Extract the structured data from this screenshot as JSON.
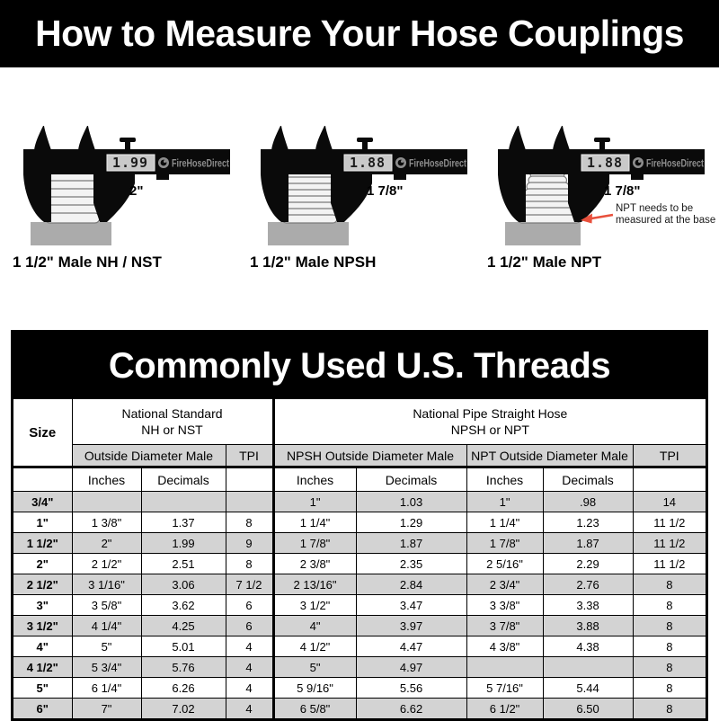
{
  "header": {
    "title": "How to Measure Your Hose Couplings"
  },
  "diagrams": {
    "items": [
      {
        "display": "1.99",
        "brand": "FireHoseDirect",
        "measure_label": "2\"",
        "caption": "1 1/2\" Male NH / NST"
      },
      {
        "display": "1.88",
        "brand": "FireHoseDirect",
        "measure_label": "1 7/8\"",
        "caption": "1 1/2\" Male NPSH"
      },
      {
        "display": "1.88",
        "brand": "FireHoseDirect",
        "measure_label": "1 7/8\"",
        "caption": "1 1/2\" Male NPT",
        "annotation_line1": "NPT needs to be",
        "annotation_line2": "measured at the base"
      }
    ]
  },
  "table": {
    "title": "Commonly Used U.S. Threads",
    "header": {
      "size": "Size",
      "group1": {
        "line1": "National Standard",
        "line2": "NH or NST"
      },
      "group2": {
        "line1": "National Pipe Straight Hose",
        "line2": "NPSH or NPT"
      },
      "sub_nh": "Outside Diameter Male",
      "sub_npsh": "NPSH Outside Diameter Male",
      "sub_npt": "NPT Outside Diameter Male",
      "tpi": "TPI",
      "inches": "Inches",
      "decimals": "Decimals"
    },
    "rows": [
      [
        "3/4\"",
        "",
        "",
        "",
        "1\"",
        "1.03",
        "1\"",
        ".98",
        "14"
      ],
      [
        "1\"",
        "1 3/8\"",
        "1.37",
        "8",
        "1 1/4\"",
        "1.29",
        "1 1/4\"",
        "1.23",
        "11 1/2"
      ],
      [
        "1 1/2\"",
        "2\"",
        "1.99",
        "9",
        "1 7/8\"",
        "1.87",
        "1 7/8\"",
        "1.87",
        "11 1/2"
      ],
      [
        "2\"",
        "2 1/2\"",
        "2.51",
        "8",
        "2 3/8\"",
        "2.35",
        "2 5/16\"",
        "2.29",
        "11 1/2"
      ],
      [
        "2 1/2\"",
        "3 1/16\"",
        "3.06",
        "7 1/2",
        "2 13/16\"",
        "2.84",
        "2 3/4\"",
        "2.76",
        "8"
      ],
      [
        "3\"",
        "3 5/8\"",
        "3.62",
        "6",
        "3 1/2\"",
        "3.47",
        "3 3/8\"",
        "3.38",
        "8"
      ],
      [
        "3 1/2\"",
        "4 1/4\"",
        "4.25",
        "6",
        "4\"",
        "3.97",
        "3 7/8\"",
        "3.88",
        "8"
      ],
      [
        "4\"",
        "5\"",
        "5.01",
        "4",
        "4 1/2\"",
        "4.47",
        "4 3/8\"",
        "4.38",
        "8"
      ],
      [
        "4 1/2\"",
        "5 3/4\"",
        "5.76",
        "4",
        "5\"",
        "4.97",
        "",
        "",
        "8"
      ],
      [
        "5\"",
        "6 1/4\"",
        "6.26",
        "4",
        "5 9/16\"",
        "5.56",
        "5 7/16\"",
        "5.44",
        "8"
      ],
      [
        "6\"",
        "7\"",
        "7.02",
        "4",
        "6 5/8\"",
        "6.62",
        "6 1/2\"",
        "6.50",
        "8"
      ]
    ]
  },
  "colors": {
    "accent_red": "#e8503c",
    "row_gray": "#d3d3d3",
    "brand_gray": "#8e8e8e"
  }
}
